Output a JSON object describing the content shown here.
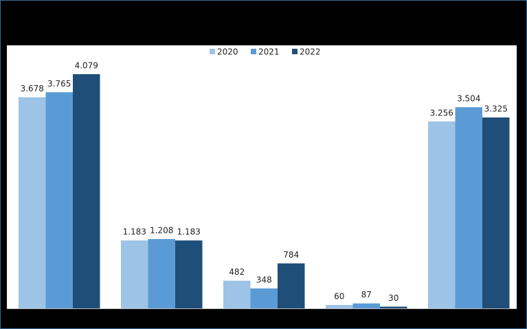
{
  "chart_data": {
    "type": "bar",
    "categories": [
      null,
      null,
      null,
      null,
      null
    ],
    "series": [
      {
        "name": "2020",
        "color": "#9dc3e6",
        "values": [
          3678,
          1183,
          482,
          60,
          3256
        ],
        "value_labels": [
          "3.678",
          "1.183",
          "482",
          "60",
          "3.256"
        ]
      },
      {
        "name": "2021",
        "color": "#5b9bd5",
        "values": [
          3765,
          1208,
          348,
          87,
          3504
        ],
        "value_labels": [
          "3.765",
          "1.208",
          "348",
          "87",
          "3.504"
        ]
      },
      {
        "name": "2022",
        "color": "#1f4e79",
        "values": [
          4079,
          1183,
          784,
          30,
          3325
        ],
        "value_labels": [
          "4.079",
          "1.183",
          "784",
          "30",
          "3.325"
        ]
      }
    ],
    "legend": "top"
  }
}
